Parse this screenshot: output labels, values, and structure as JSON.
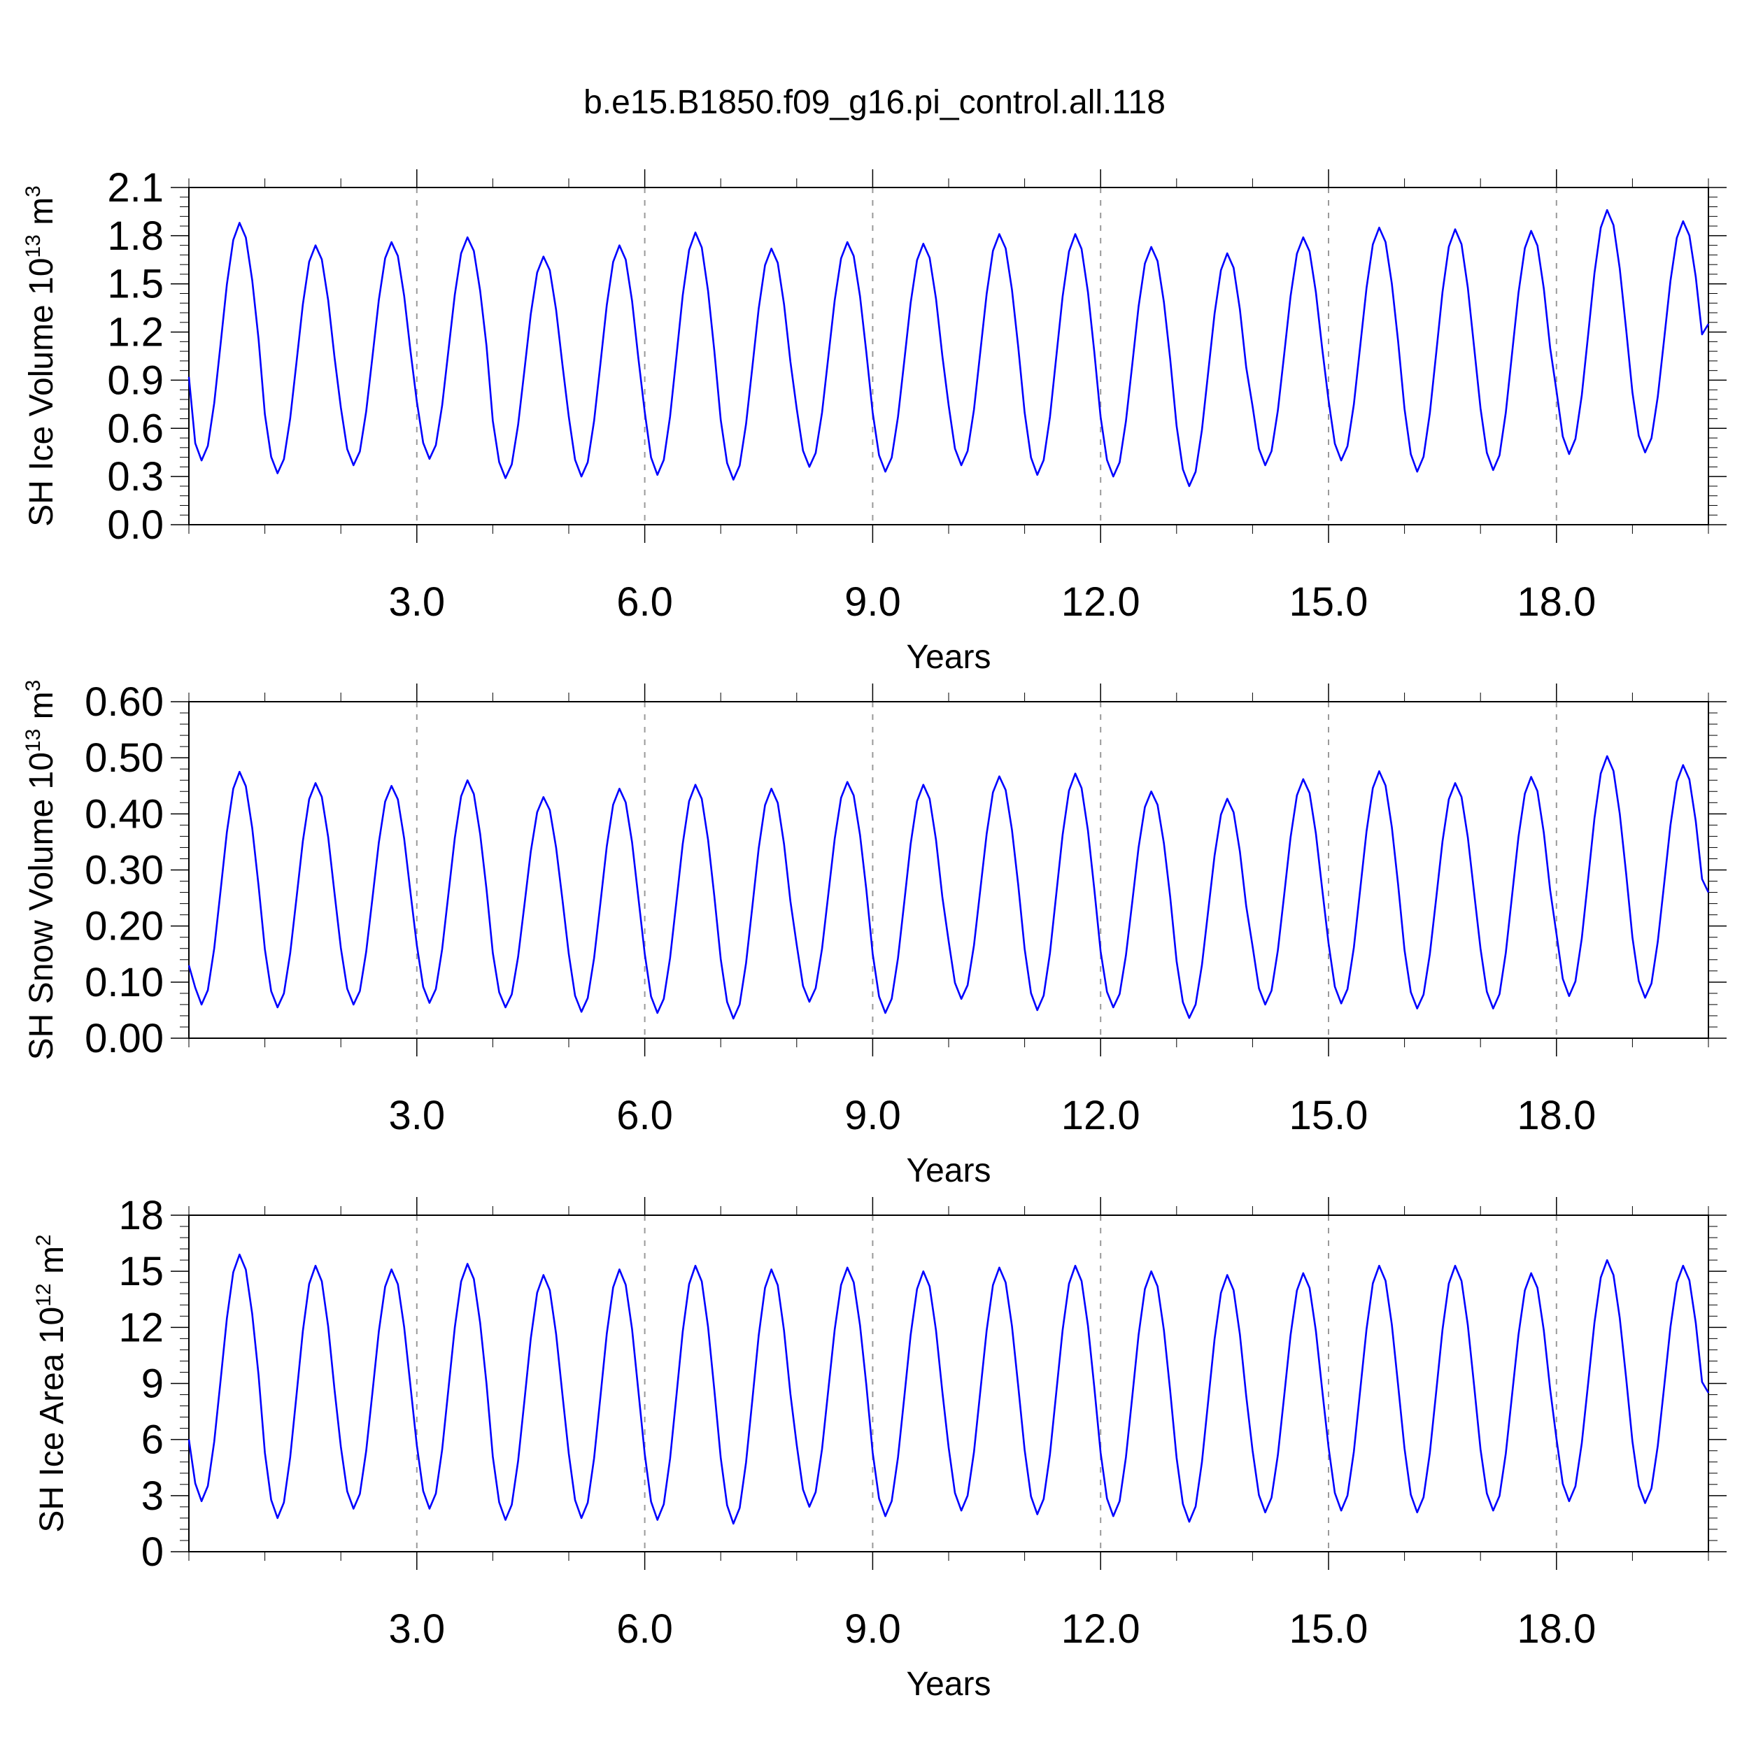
{
  "title": "b.e15.B1850.f09_g16.pi_control.all.118",
  "colors": {
    "series": "#0000ff",
    "frame": "#000000",
    "reference_lines": "#999999"
  },
  "chart_data": [
    {
      "type": "line",
      "ylabel_main": "SH Ice Volume 10",
      "ylabel_exp": "13",
      "ylabel_unit": " m",
      "ylabel_unit_exp": "3",
      "xlabel": "Years",
      "xlim": [
        0,
        20
      ],
      "ylim": [
        0.0,
        2.1
      ],
      "yticks": [
        0.0,
        0.3,
        0.6,
        0.9,
        1.2,
        1.5,
        1.8,
        2.1
      ],
      "ytick_labels": [
        "0.0",
        "0.3",
        "0.6",
        "0.9",
        "1.2",
        "1.5",
        "1.8",
        "2.1"
      ],
      "xticks": [
        3,
        6,
        9,
        12,
        15,
        18
      ],
      "xtick_labels": [
        "3.0",
        "6.0",
        "9.0",
        "12.0",
        "15.0",
        "18.0"
      ],
      "reference_lines_x": [
        3,
        6,
        9,
        12,
        15,
        18
      ],
      "series": [
        {
          "min": [
            0.4,
            0.32,
            0.37,
            0.41,
            0.29,
            0.3,
            0.31,
            0.28,
            0.36,
            0.33,
            0.37,
            0.31,
            0.3,
            0.24,
            0.37,
            0.4,
            0.33,
            0.34,
            0.44,
            0.45
          ],
          "max": [
            1.88,
            1.74,
            1.76,
            1.79,
            1.67,
            1.74,
            1.82,
            1.72,
            1.76,
            1.75,
            1.81,
            1.81,
            1.73,
            1.69,
            1.79,
            1.85,
            1.84,
            1.83,
            1.96,
            1.89
          ],
          "start": 0.92,
          "end": 1.25
        }
      ]
    },
    {
      "type": "line",
      "ylabel_main": "SH Snow Volume 10",
      "ylabel_exp": "13",
      "ylabel_unit": " m",
      "ylabel_unit_exp": "3",
      "xlabel": "Years",
      "xlim": [
        0,
        20
      ],
      "ylim": [
        0.0,
        0.6
      ],
      "yticks": [
        0.0,
        0.1,
        0.2,
        0.3,
        0.4,
        0.5,
        0.6
      ],
      "ytick_labels": [
        "0.00",
        "0.10",
        "0.20",
        "0.30",
        "0.40",
        "0.50",
        "0.60"
      ],
      "xticks": [
        3,
        6,
        9,
        12,
        15,
        18
      ],
      "xtick_labels": [
        "3.0",
        "6.0",
        "9.0",
        "12.0",
        "15.0",
        "18.0"
      ],
      "reference_lines_x": [
        3,
        6,
        9,
        12,
        15,
        18
      ],
      "series": [
        {
          "min": [
            0.06,
            0.055,
            0.06,
            0.063,
            0.055,
            0.047,
            0.045,
            0.035,
            0.065,
            0.045,
            0.07,
            0.05,
            0.055,
            0.036,
            0.06,
            0.062,
            0.053,
            0.053,
            0.075,
            0.072
          ],
          "max": [
            0.475,
            0.455,
            0.45,
            0.46,
            0.43,
            0.445,
            0.452,
            0.445,
            0.457,
            0.452,
            0.467,
            0.472,
            0.44,
            0.427,
            0.462,
            0.476,
            0.455,
            0.466,
            0.503,
            0.487
          ],
          "start": 0.13,
          "end": 0.26
        }
      ]
    },
    {
      "type": "line",
      "ylabel_main": "SH Ice Area 10",
      "ylabel_exp": "12",
      "ylabel_unit": " m",
      "ylabel_unit_exp": "2",
      "xlabel": "Years",
      "xlim": [
        0,
        20
      ],
      "ylim": [
        0,
        18
      ],
      "yticks": [
        0,
        3,
        6,
        9,
        12,
        15,
        18
      ],
      "ytick_labels": [
        "0",
        "3",
        "6",
        "9",
        "12",
        "15",
        "18"
      ],
      "xticks": [
        3,
        6,
        9,
        12,
        15,
        18
      ],
      "xtick_labels": [
        "3.0",
        "6.0",
        "9.0",
        "12.0",
        "15.0",
        "18.0"
      ],
      "reference_lines_x": [
        3,
        6,
        9,
        12,
        15,
        18
      ],
      "series": [
        {
          "min": [
            2.7,
            1.8,
            2.3,
            2.3,
            1.7,
            1.8,
            1.7,
            1.5,
            2.4,
            1.9,
            2.2,
            2.0,
            1.9,
            1.6,
            2.1,
            2.2,
            2.1,
            2.2,
            2.7,
            2.6
          ],
          "max": [
            15.9,
            15.3,
            15.1,
            15.4,
            14.8,
            15.1,
            15.3,
            15.1,
            15.2,
            15.0,
            15.2,
            15.3,
            15.0,
            14.8,
            14.9,
            15.3,
            15.3,
            14.9,
            15.6,
            15.3
          ],
          "start": 6.0,
          "end": 8.5
        }
      ]
    }
  ]
}
